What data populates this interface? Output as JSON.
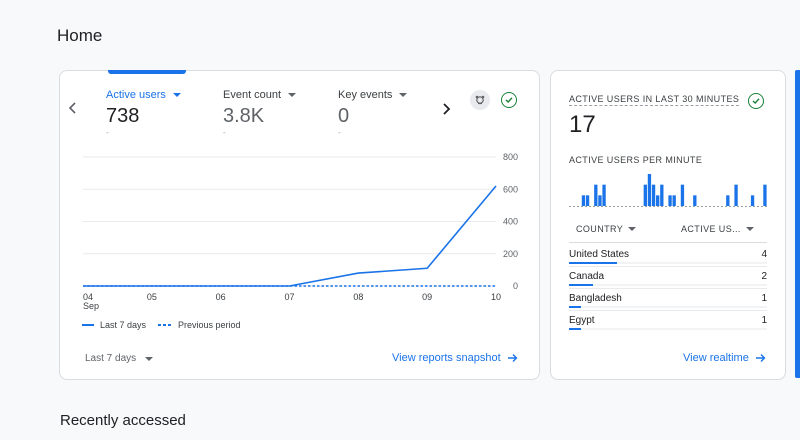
{
  "page": {
    "title": "Home",
    "recent_title": "Recently accessed"
  },
  "overview": {
    "metrics": [
      {
        "label": "Active users",
        "value": "738",
        "sub": "-",
        "active": true
      },
      {
        "label": "Event count",
        "value": "3.8K",
        "sub": "-",
        "active": false
      },
      {
        "label": "Key events",
        "value": "0",
        "sub": "-",
        "active": false
      }
    ],
    "prev_icon": "chevron-left-icon",
    "next_icon": "chevron-right-icon",
    "insights_icon": "insights-icon",
    "status_icon": "check-circle-icon",
    "legend": {
      "current": "Last 7 days",
      "previous": "Previous period"
    },
    "date_range": "Last 7 days",
    "link": "View reports snapshot",
    "chart_data": {
      "type": "line",
      "x": [
        "04",
        "05",
        "06",
        "07",
        "08",
        "09",
        "10"
      ],
      "x_sublabel": "Sep",
      "series": [
        {
          "name": "Last 7 days",
          "values": [
            0,
            0,
            0,
            0,
            80,
            110,
            620
          ]
        },
        {
          "name": "Previous period",
          "values": [
            0,
            0,
            0,
            0,
            0,
            0,
            0
          ]
        }
      ],
      "ylim": [
        0,
        800
      ],
      "yticks": [
        "0",
        "200",
        "400",
        "600",
        "800"
      ],
      "grid": true,
      "colors": {
        "current": "#1a73e8",
        "previous": "#1a73e8"
      }
    }
  },
  "realtime": {
    "title": "ACTIVE USERS IN LAST 30 MINUTES",
    "value": "17",
    "per_minute_title": "ACTIVE USERS PER MINUTE",
    "per_minute": [
      0,
      0,
      0,
      1,
      1,
      0,
      2,
      1,
      2,
      0,
      0,
      0,
      0,
      0,
      0,
      0,
      0,
      0,
      2,
      3,
      2,
      1,
      2,
      0,
      1,
      1,
      0,
      2,
      0,
      0,
      1,
      0,
      0,
      0,
      0,
      0,
      0,
      0,
      1,
      0,
      2,
      0,
      0,
      0,
      1,
      0,
      0,
      2
    ],
    "columns": {
      "country": "COUNTRY",
      "users": "ACTIVE US..."
    },
    "rows": [
      {
        "country": "United States",
        "count": "4",
        "share": 1.0
      },
      {
        "country": "Canada",
        "count": "2",
        "share": 0.5
      },
      {
        "country": "Bangladesh",
        "count": "1",
        "share": 0.25
      },
      {
        "country": "Egypt",
        "count": "1",
        "share": 0.25
      }
    ],
    "link": "View realtime",
    "status_icon": "check-circle-icon",
    "accent": "#1a73e8"
  }
}
